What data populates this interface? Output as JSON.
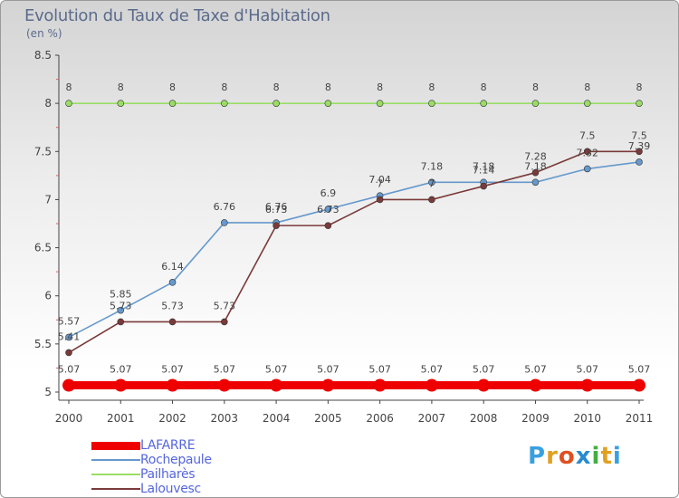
{
  "chart_data": {
    "type": "line",
    "title": "Evolution du Taux de Taxe d'Habitation",
    "subtitle": "(en %)",
    "categories": [
      "2000",
      "2001",
      "2002",
      "2003",
      "2004",
      "2005",
      "2006",
      "2007",
      "2008",
      "2009",
      "2010",
      "2011"
    ],
    "ylim": [
      5,
      8.5
    ],
    "yticks": [
      "5",
      "5.5",
      "6",
      "6.5",
      "7",
      "7.5",
      "8",
      "8.5"
    ],
    "grid": false,
    "legend_position": "bottom-left",
    "series": [
      {
        "name": "LAFARRE",
        "color": "#ee0000",
        "values": [
          5.07,
          5.07,
          5.07,
          5.07,
          5.07,
          5.07,
          5.07,
          5.07,
          5.07,
          5.07,
          5.07,
          5.07
        ],
        "labels": [
          "5.07",
          "5.07",
          "5.07",
          "5.07",
          "5.07",
          "5.07",
          "5.07",
          "5.07",
          "5.07",
          "5.07",
          "5.07",
          "5.07"
        ]
      },
      {
        "name": "Rochepaule",
        "color": "#6699cc",
        "values": [
          5.57,
          5.85,
          6.14,
          6.76,
          6.76,
          6.9,
          7.04,
          7.18,
          7.18,
          7.18,
          7.32,
          7.39
        ],
        "labels": [
          "5.57",
          "5.85",
          "6.14",
          "6.76",
          "6.76",
          "6.9",
          "7.04",
          "7.18",
          "7.18",
          "7.18",
          "7.32",
          "7.39"
        ]
      },
      {
        "name": "Pailharès",
        "color": "#99dd66",
        "values": [
          8,
          8,
          8,
          8,
          8,
          8,
          8,
          8,
          8,
          8,
          8,
          8
        ],
        "labels": [
          "8",
          "8",
          "8",
          "8",
          "8",
          "8",
          "8",
          "8",
          "8",
          "8",
          "8",
          "8"
        ]
      },
      {
        "name": "Lalouvesc",
        "color": "#7a3a3a",
        "values": [
          5.41,
          5.73,
          5.73,
          5.73,
          6.73,
          6.73,
          7,
          7,
          7.14,
          7.28,
          7.5,
          7.5
        ],
        "labels": [
          "5.41",
          "5.73",
          "5.73",
          "5.73",
          "6.73",
          "6.73",
          "7",
          "7",
          "7.14",
          "7.28",
          "7.5",
          "7.5"
        ]
      }
    ]
  },
  "branding": {
    "logo_text": "Proxiti"
  }
}
